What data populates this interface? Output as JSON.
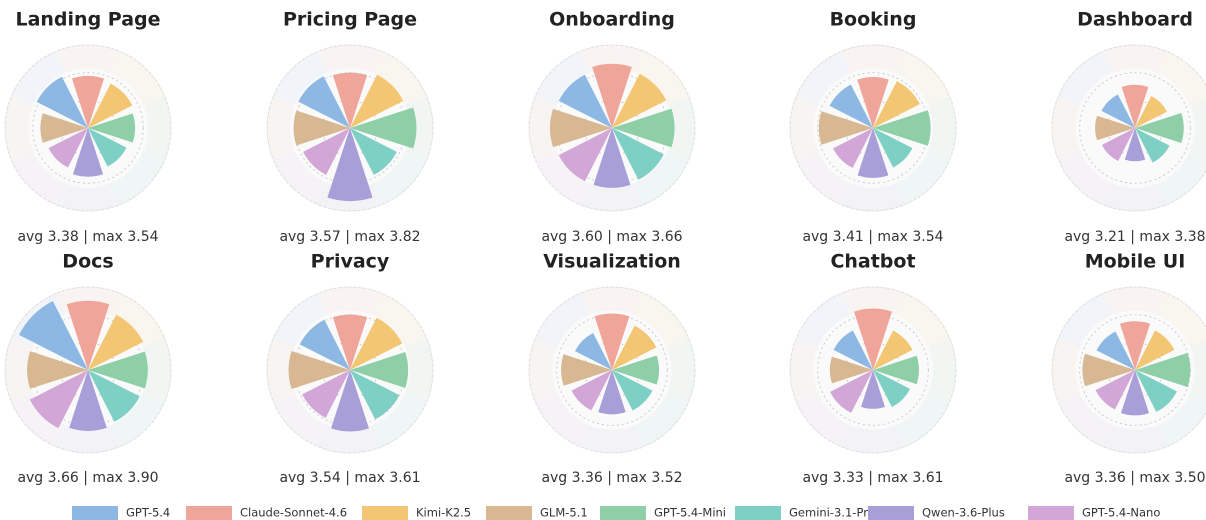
{
  "legend": {
    "series": [
      {
        "name": "GPT-5.4",
        "color": "#8db8e3"
      },
      {
        "name": "Claude-Sonnet-4.6",
        "color": "#f0a59b"
      },
      {
        "name": "Kimi-K2.5",
        "color": "#f3c674"
      },
      {
        "name": "GLM-5.1",
        "color": "#d8b893"
      },
      {
        "name": "GPT-5.4-Mini",
        "color": "#8ecfa8"
      },
      {
        "name": "Gemini-3.1-Pro",
        "color": "#7ecfc4"
      },
      {
        "name": "Qwen-3.6-Plus",
        "color": "#a99fd8"
      },
      {
        "name": "GPT-5.4-Nano",
        "color": "#d2a6d6"
      }
    ]
  },
  "chart_data": [
    {
      "type": "polar_bar",
      "title": "Landing Page",
      "caption": "avg 3.38 | max 3.54",
      "rlim": [
        2.5,
        4
      ],
      "rticks": [
        3,
        3.5
      ],
      "values": [
        3.54,
        3.44,
        3.4,
        3.36,
        3.35,
        3.28,
        3.38,
        3.3
      ]
    },
    {
      "type": "polar_bar",
      "title": "Pricing Page",
      "caption": "avg 3.57 | max 3.82",
      "rlim": [
        2.5,
        4
      ],
      "rticks": [
        3,
        3.5
      ],
      "values": [
        3.55,
        3.5,
        3.58,
        3.52,
        3.7,
        3.45,
        3.82,
        3.45
      ]
    },
    {
      "type": "polar_bar",
      "title": "Onboarding",
      "caption": "avg 3.60 | max 3.66",
      "rlim": [
        2.5,
        4
      ],
      "rticks": [
        3,
        3.5
      ],
      "values": [
        3.58,
        3.66,
        3.6,
        3.62,
        3.63,
        3.55,
        3.58,
        3.58
      ]
    },
    {
      "type": "polar_bar",
      "title": "Booking",
      "caption": "avg 3.41 | max 3.54",
      "rlim": [
        2.5,
        4
      ],
      "rticks": [
        3,
        3.5
      ],
      "values": [
        3.38,
        3.42,
        3.45,
        3.48,
        3.54,
        3.3,
        3.4,
        3.31
      ]
    },
    {
      "type": "polar_bar",
      "title": "Dashboard",
      "caption": "avg 3.21 | max 3.38",
      "rlim": [
        2.5,
        4
      ],
      "rticks": [
        3,
        3.5
      ],
      "values": [
        3.18,
        3.28,
        3.15,
        3.22,
        3.38,
        3.2,
        3.1,
        3.17
      ]
    },
    {
      "type": "polar_bar",
      "title": "Docs",
      "caption": "avg 3.66 | max 3.90",
      "rlim": [
        2.5,
        4
      ],
      "rticks": [
        3,
        3.5
      ],
      "values": [
        3.9,
        3.75,
        3.62,
        3.6,
        3.58,
        3.55,
        3.6,
        3.68
      ]
    },
    {
      "type": "polar_bar",
      "title": "Privacy",
      "caption": "avg 3.54 | max 3.61",
      "rlim": [
        2.5,
        4
      ],
      "rticks": [
        3,
        3.5
      ],
      "values": [
        3.52,
        3.5,
        3.56,
        3.61,
        3.55,
        3.5,
        3.61,
        3.47
      ]
    },
    {
      "type": "polar_bar",
      "title": "Visualization",
      "caption": "avg 3.36 | max 3.52",
      "rlim": [
        2.5,
        4
      ],
      "rticks": [
        3,
        3.5
      ],
      "values": [
        3.25,
        3.52,
        3.4,
        3.42,
        3.35,
        3.32,
        3.3,
        3.32
      ]
    },
    {
      "type": "polar_bar",
      "title": "Chatbot",
      "caption": "avg 3.33 | max 3.61",
      "rlim": [
        2.5,
        4
      ],
      "rticks": [
        3,
        3.5
      ],
      "values": [
        3.3,
        3.61,
        3.3,
        3.28,
        3.33,
        3.25,
        3.2,
        3.37
      ]
    },
    {
      "type": "polar_bar",
      "title": "Mobile UI",
      "caption": "avg 3.36 | max 3.50",
      "rlim": [
        2.5,
        4
      ],
      "rticks": [
        3,
        3.5
      ],
      "values": [
        3.28,
        3.38,
        3.3,
        3.45,
        3.5,
        3.35,
        3.32,
        3.3
      ]
    }
  ]
}
